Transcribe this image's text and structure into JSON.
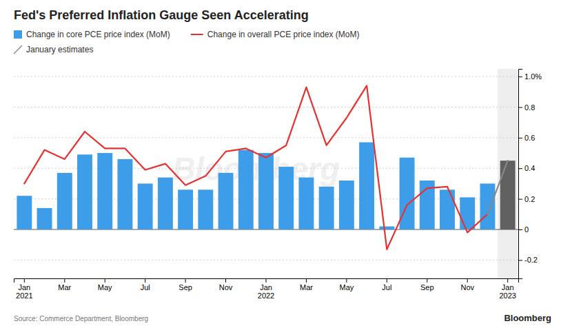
{
  "chart_data": {
    "type": "bar",
    "title": "Fed's Preferred Inflation Gauge Seen Accelerating",
    "categories": [
      "Jan\n2021",
      null,
      "Mar",
      null,
      "May",
      null,
      "Jul",
      null,
      "Sep",
      null,
      "Nov",
      null,
      "Jan\n2022",
      null,
      "Mar",
      null,
      "May",
      null,
      "Jul",
      null,
      "Sep",
      null,
      "Nov",
      null,
      "Jan\n2023"
    ],
    "series": [
      {
        "name": "Change in core PCE price index (MoM)",
        "type": "bar",
        "color": "#3d9de8",
        "colors": [
          "#3d9de8",
          "#3d9de8",
          "#3d9de8",
          "#3d9de8",
          "#3d9de8",
          "#3d9de8",
          "#3d9de8",
          "#3d9de8",
          "#3d9de8",
          "#3d9de8",
          "#3d9de8",
          "#3d9de8",
          "#3d9de8",
          "#3d9de8",
          "#3d9de8",
          "#3d9de8",
          "#3d9de8",
          "#3d9de8",
          "#3d9de8",
          "#3d9de8",
          "#3d9de8",
          "#3d9de8",
          "#3d9de8",
          "#3d9de8",
          "#606060"
        ],
        "values": [
          0.22,
          0.14,
          0.37,
          0.49,
          0.5,
          0.46,
          0.3,
          0.34,
          0.26,
          0.26,
          0.37,
          0.52,
          0.5,
          0.41,
          0.34,
          0.28,
          0.32,
          0.57,
          0.02,
          0.47,
          0.32,
          0.26,
          0.21,
          0.3,
          0.45
        ]
      },
      {
        "name": "Change in overall PCE price index (MoM)",
        "type": "line",
        "color": "#e83030",
        "colors": [
          "#e83030",
          "#e83030",
          "#e83030",
          "#e83030",
          "#e83030",
          "#e83030",
          "#e83030",
          "#e83030",
          "#e83030",
          "#e83030",
          "#e83030",
          "#e83030",
          "#e83030",
          "#e83030",
          "#e83030",
          "#e83030",
          "#e83030",
          "#e83030",
          "#e83030",
          "#e83030",
          "#e83030",
          "#e83030",
          "#e83030",
          "#e83030",
          "#888888"
        ],
        "values": [
          0.3,
          0.52,
          0.46,
          0.64,
          0.53,
          0.53,
          0.39,
          0.43,
          0.29,
          0.35,
          0.51,
          0.53,
          0.47,
          0.55,
          0.93,
          0.55,
          0.73,
          0.94,
          -0.13,
          0.16,
          0.27,
          0.28,
          -0.02,
          0.1,
          0.45
        ]
      }
    ],
    "ylim": [
      -0.32,
      1.05
    ],
    "yticks": [
      -0.2,
      0,
      0.2,
      0.4,
      0.6,
      0.8,
      {
        "value": 1.0,
        "label": "1.0%"
      }
    ],
    "grid": true,
    "annotations": [
      "January estimates",
      "Source: Commerce Department, Bloomberg",
      "Bloomberg",
      "Bloomberg"
    ]
  }
}
